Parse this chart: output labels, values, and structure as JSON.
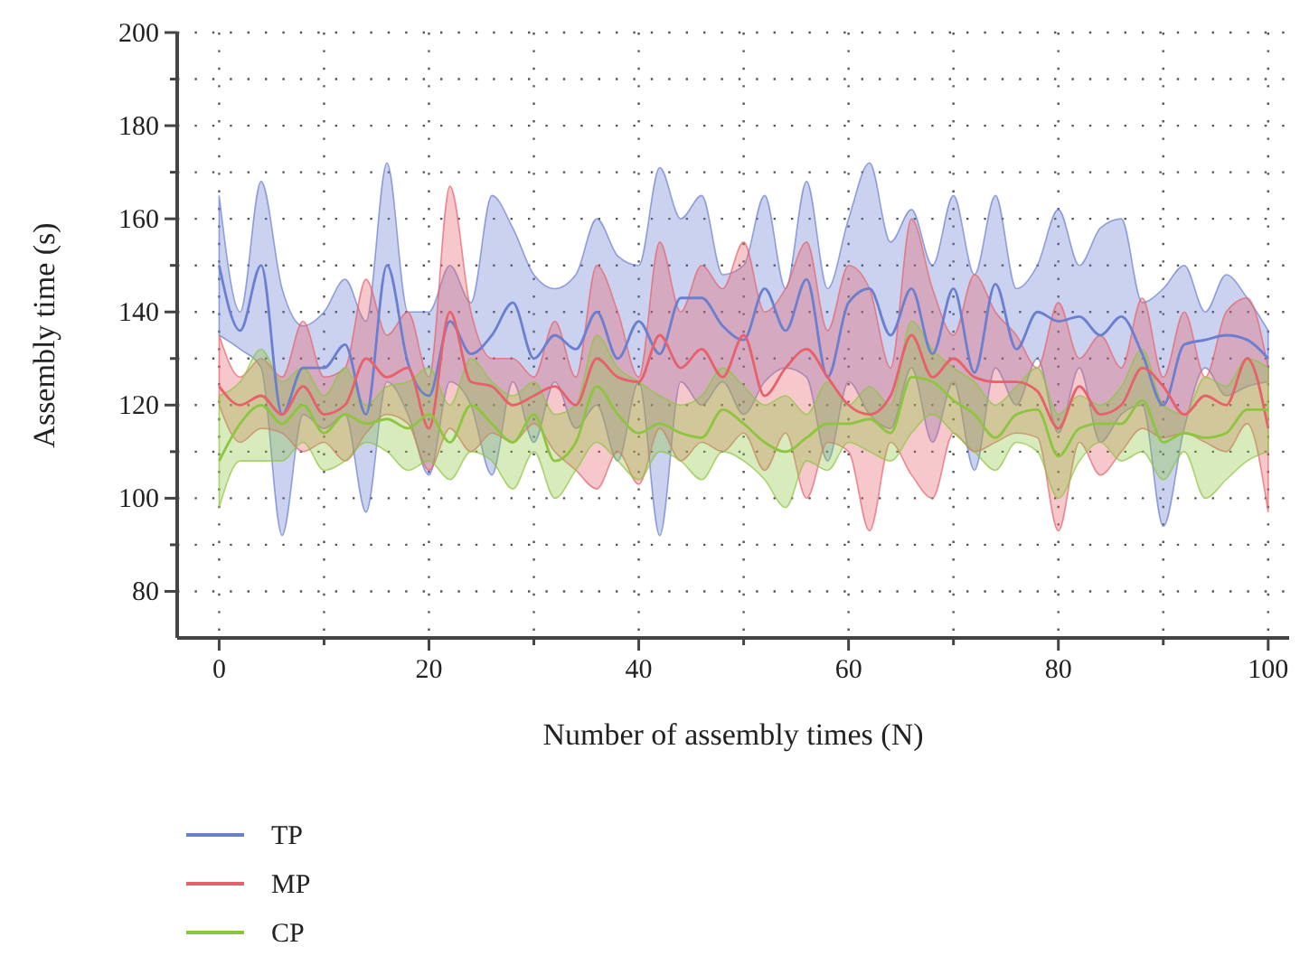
{
  "chart_data": {
    "type": "line",
    "xlabel": "Number of assembly times (N)",
    "ylabel": "Assembly time (s)",
    "xlim": [
      -4,
      102
    ],
    "ylim": [
      70,
      200
    ],
    "xticks": [
      0,
      {
        "value": 10,
        "label": null
      },
      20,
      {
        "value": 30,
        "label": null
      },
      40,
      {
        "value": 50,
        "label": null
      },
      60,
      {
        "value": 70,
        "label": null
      },
      80,
      {
        "value": 90,
        "label": null
      },
      100
    ],
    "yticks": [
      80,
      {
        "value": 90,
        "label": null
      },
      100,
      {
        "value": 110,
        "label": null
      },
      120,
      {
        "value": 130,
        "label": null
      },
      140,
      {
        "value": 150,
        "label": null
      },
      160,
      {
        "value": 170,
        "label": null
      },
      180,
      {
        "value": 190,
        "label": null
      },
      200
    ],
    "grid": true,
    "legend": "bottom left",
    "line_style": "solid",
    "x": [
      0,
      2,
      4,
      6,
      8,
      10,
      12,
      14,
      16,
      18,
      20,
      22,
      24,
      26,
      28,
      30,
      32,
      34,
      36,
      38,
      40,
      42,
      44,
      46,
      48,
      50,
      52,
      54,
      56,
      58,
      60,
      62,
      64,
      66,
      68,
      70,
      72,
      74,
      76,
      78,
      80,
      82,
      84,
      86,
      88,
      90,
      92,
      94,
      96,
      98,
      100
    ],
    "series": [
      {
        "name": "TP",
        "color": "#6a7fd0",
        "values": [
          150,
          136,
          150,
          118,
          128,
          128,
          133,
          118,
          150,
          129,
          122,
          138,
          131,
          135,
          142,
          130,
          135,
          132,
          140,
          130,
          138,
          131,
          143,
          143,
          137,
          134,
          145,
          136,
          147,
          126,
          142,
          145,
          135,
          145,
          131,
          145,
          127,
          146,
          132,
          140,
          138,
          139,
          135,
          139,
          131,
          120,
          133,
          134,
          135,
          134,
          130
        ],
        "lower": [
          135,
          132,
          128,
          92,
          118,
          115,
          118,
          97,
          125,
          118,
          105,
          125,
          120,
          105,
          125,
          112,
          125,
          115,
          120,
          108,
          125,
          92,
          125,
          120,
          125,
          118,
          125,
          128,
          126,
          108,
          125,
          118,
          115,
          128,
          112,
          125,
          106,
          128,
          120,
          130,
          114,
          128,
          112,
          118,
          120,
          94,
          115,
          128,
          122,
          124,
          125
        ],
        "upper": [
          165,
          140,
          168,
          145,
          137,
          140,
          147,
          138,
          172,
          140,
          140,
          150,
          142,
          165,
          158,
          148,
          145,
          148,
          160,
          152,
          150,
          171,
          160,
          165,
          148,
          150,
          165,
          145,
          168,
          145,
          160,
          172,
          155,
          162,
          150,
          165,
          148,
          165,
          145,
          150,
          162,
          150,
          158,
          160,
          142,
          145,
          150,
          140,
          148,
          143,
          136
        ]
      },
      {
        "name": "MP",
        "color": "#e8606a",
        "values": [
          124,
          120,
          122,
          118,
          124,
          118,
          120,
          130,
          126,
          128,
          115,
          140,
          125,
          124,
          120,
          122,
          124,
          120,
          130,
          126,
          125,
          135,
          128,
          132,
          126,
          135,
          122,
          128,
          132,
          126,
          120,
          118,
          122,
          135,
          126,
          130,
          126,
          125,
          125,
          123,
          115,
          124,
          118,
          120,
          128,
          124,
          118,
          122,
          120,
          130,
          115
        ],
        "lower": [
          120,
          112,
          115,
          114,
          110,
          112,
          108,
          114,
          118,
          116,
          106,
          115,
          110,
          114,
          112,
          116,
          110,
          106,
          102,
          110,
          103,
          115,
          108,
          112,
          110,
          114,
          106,
          114,
          100,
          112,
          110,
          93,
          112,
          105,
          100,
          114,
          110,
          112,
          114,
          113,
          93,
          112,
          105,
          110,
          115,
          113,
          114,
          112,
          110,
          116,
          97
        ],
        "upper": [
          135,
          126,
          130,
          126,
          138,
          126,
          128,
          147,
          135,
          140,
          126,
          167,
          140,
          130,
          130,
          126,
          138,
          126,
          150,
          140,
          126,
          155,
          140,
          150,
          145,
          155,
          140,
          145,
          155,
          136,
          150,
          145,
          128,
          160,
          145,
          135,
          148,
          140,
          135,
          128,
          142,
          130,
          135,
          128,
          143,
          126,
          140,
          126,
          140,
          143,
          128
        ]
      },
      {
        "name": "CP",
        "color": "#8cc63f",
        "values": [
          108,
          116,
          120,
          116,
          120,
          114,
          118,
          116,
          117,
          115,
          118,
          112,
          120,
          116,
          112,
          118,
          108,
          112,
          124,
          118,
          114,
          116,
          114,
          113,
          119,
          116,
          112,
          110,
          113,
          116,
          116,
          117,
          114,
          126,
          125,
          121,
          118,
          113,
          118,
          119,
          109,
          115,
          116,
          116,
          121,
          112,
          114,
          113,
          114,
          119,
          119
        ],
        "lower": [
          98,
          108,
          108,
          108,
          112,
          106,
          108,
          112,
          110,
          106,
          108,
          104,
          110,
          108,
          102,
          110,
          100,
          106,
          112,
          108,
          104,
          110,
          108,
          104,
          110,
          108,
          104,
          98,
          108,
          106,
          112,
          110,
          108,
          114,
          118,
          114,
          110,
          106,
          112,
          110,
          100,
          108,
          112,
          108,
          110,
          104,
          110,
          100,
          104,
          108,
          110
        ],
        "upper": [
          122,
          125,
          132,
          125,
          128,
          122,
          128,
          120,
          124,
          125,
          128,
          120,
          130,
          125,
          122,
          125,
          118,
          120,
          135,
          128,
          125,
          122,
          120,
          122,
          128,
          124,
          120,
          122,
          118,
          125,
          120,
          124,
          120,
          138,
          132,
          128,
          125,
          120,
          124,
          128,
          118,
          122,
          120,
          124,
          132,
          120,
          118,
          126,
          124,
          130,
          128
        ]
      }
    ]
  }
}
